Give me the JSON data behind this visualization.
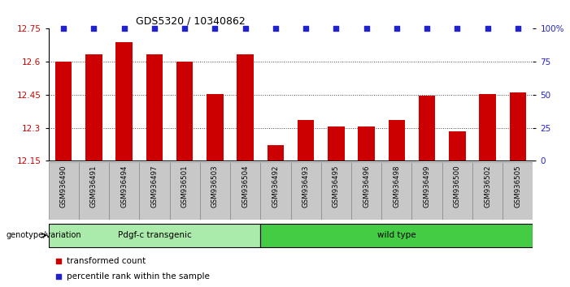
{
  "title": "GDS5320 / 10340862",
  "samples": [
    "GSM936490",
    "GSM936491",
    "GSM936494",
    "GSM936497",
    "GSM936501",
    "GSM936503",
    "GSM936504",
    "GSM936492",
    "GSM936493",
    "GSM936495",
    "GSM936496",
    "GSM936498",
    "GSM936499",
    "GSM936500",
    "GSM936502",
    "GSM936505"
  ],
  "bar_values": [
    12.6,
    12.635,
    12.69,
    12.635,
    12.6,
    12.453,
    12.635,
    12.22,
    12.335,
    12.305,
    12.305,
    12.335,
    12.447,
    12.285,
    12.453,
    12.462
  ],
  "bar_color": "#cc0000",
  "percentile_color": "#2222cc",
  "ymin": 12.15,
  "ymax": 12.75,
  "yticks": [
    12.15,
    12.3,
    12.45,
    12.6,
    12.75
  ],
  "ytick_labels": [
    "12.15",
    "12.3",
    "12.45",
    "12.6",
    "12.75"
  ],
  "right_yticks": [
    0,
    25,
    50,
    75,
    100
  ],
  "right_ytick_labels": [
    "0",
    "25",
    "50",
    "75",
    "100%"
  ],
  "transgenic_indices": [
    0,
    1,
    2,
    3,
    4,
    5,
    6
  ],
  "wildtype_indices": [
    7,
    8,
    9,
    10,
    11,
    12,
    13,
    14,
    15
  ],
  "transgenic_label": "Pdgf-c transgenic",
  "wildtype_label": "wild type",
  "transgenic_color": "#aaeaaa",
  "wildtype_color": "#44cc44",
  "genotype_label": "genotype/variation",
  "legend_red_label": "transformed count",
  "legend_blue_label": "percentile rank within the sample",
  "dotted_line_color": "#444444",
  "tick_bg_color": "#c8c8c8",
  "plot_bg": "#ffffff"
}
